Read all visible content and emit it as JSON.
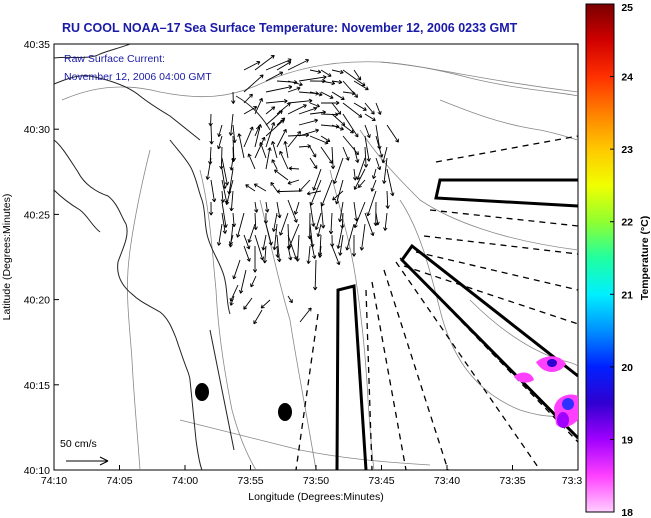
{
  "title": "RU COOL  NOAA–17  Sea Surface Temperature:  November 12, 2006 0233 GMT",
  "current_legend": {
    "line1": "Raw Surface Current:",
    "line2": "November 12, 2006 04:00 GMT"
  },
  "scale_label": "50 cm/s",
  "x_axis": {
    "label": "Longitude (Degrees:Minutes)",
    "ticks": [
      "74:10",
      "74:05",
      "74:00",
      "73:55",
      "73:50",
      "73:45",
      "73:40",
      "73:35",
      "73:3"
    ]
  },
  "y_axis": {
    "label": "Latitude (Degrees:Minutes)",
    "ticks": [
      "40:35",
      "40:30",
      "40:25",
      "40:20",
      "40:15",
      "40:10"
    ]
  },
  "colorbar": {
    "label": "Temperature (°C)",
    "ticks": [
      "25",
      "24",
      "23",
      "22",
      "21",
      "20",
      "19",
      "18"
    ],
    "colors": [
      "#7a0000",
      "#d00000",
      "#ff3000",
      "#ff8000",
      "#ffc800",
      "#f0ff00",
      "#90ff30",
      "#20ffa0",
      "#00f0ff",
      "#0090ff",
      "#0020ff",
      "#3000d0",
      "#a000ff",
      "#ff40ff",
      "#ffd0ff"
    ]
  }
}
